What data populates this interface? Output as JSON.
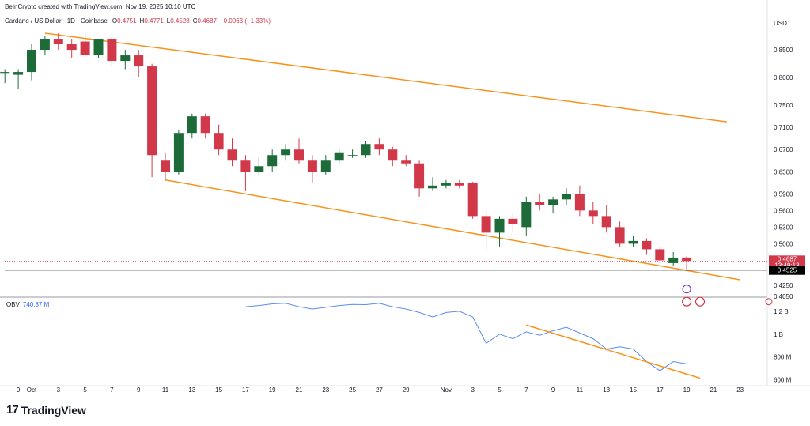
{
  "header": {
    "created_by": "BeInCrypto created with TradingView.com, Nov 19, 2025 10:10 UTC"
  },
  "legend": {
    "symbol": "Cardano / US Dollar · 1D · Coinbase",
    "open_label": "O",
    "open": "0.4751",
    "high_label": "H",
    "high": "0.4771",
    "low_label": "L",
    "low": "0.4528",
    "close_label": "C",
    "close": "0.4687",
    "change": "−0.0063 (−1.33%)"
  },
  "price_axis": {
    "currency": "USD",
    "ticks": [
      {
        "label": "0.8500",
        "v": 0.85
      },
      {
        "label": "0.8000",
        "v": 0.8
      },
      {
        "label": "0.7500",
        "v": 0.75
      },
      {
        "label": "0.7100",
        "v": 0.71
      },
      {
        "label": "0.6700",
        "v": 0.67
      },
      {
        "label": "0.6300",
        "v": 0.63
      },
      {
        "label": "0.5900",
        "v": 0.59
      },
      {
        "label": "0.5600",
        "v": 0.56
      },
      {
        "label": "0.5300",
        "v": 0.53
      },
      {
        "label": "0.5000",
        "v": 0.5
      },
      {
        "label": "0.4250",
        "v": 0.425
      },
      {
        "label": "0.4050",
        "v": 0.405
      }
    ],
    "current_price_tag": "0.4687",
    "countdown_tag": "13:49:13",
    "support_tag": "0.4525"
  },
  "obv": {
    "label": "OBV",
    "value": "740.87 M",
    "ticks": [
      {
        "label": "1.2 B",
        "v": 1200
      },
      {
        "label": "1 B",
        "v": 1000
      },
      {
        "label": "800 M",
        "v": 800
      },
      {
        "label": "600 M",
        "v": 600
      }
    ]
  },
  "time_axis": {
    "ticks": [
      {
        "label": "9",
        "d": -1
      },
      {
        "label": "Oct",
        "d": 0
      },
      {
        "label": "3",
        "d": 2
      },
      {
        "label": "5",
        "d": 4
      },
      {
        "label": "7",
        "d": 6
      },
      {
        "label": "9",
        "d": 8
      },
      {
        "label": "11",
        "d": 10
      },
      {
        "label": "13",
        "d": 12
      },
      {
        "label": "15",
        "d": 14
      },
      {
        "label": "17",
        "d": 16
      },
      {
        "label": "19",
        "d": 18
      },
      {
        "label": "21",
        "d": 20
      },
      {
        "label": "23",
        "d": 22
      },
      {
        "label": "25",
        "d": 24
      },
      {
        "label": "27",
        "d": 26
      },
      {
        "label": "29",
        "d": 28
      },
      {
        "label": "Nov",
        "d": 31
      },
      {
        "label": "3",
        "d": 33
      },
      {
        "label": "5",
        "d": 35
      },
      {
        "label": "7",
        "d": 37
      },
      {
        "label": "9",
        "d": 39
      },
      {
        "label": "11",
        "d": 41
      },
      {
        "label": "13",
        "d": 43
      },
      {
        "label": "15",
        "d": 45
      },
      {
        "label": "17",
        "d": 47
      },
      {
        "label": "19",
        "d": 49
      },
      {
        "label": "21",
        "d": 51
      },
      {
        "label": "23",
        "d": 53
      },
      {
        "label": "25",
        "d": 55
      }
    ]
  },
  "brand": {
    "logo_text": "TradingView",
    "logo_icon": "tradingview-logo-icon"
  },
  "colors": {
    "up": "#1e6b3a",
    "down": "#d1394a",
    "trendline": "#f7931a",
    "obv_line": "#5b8def",
    "support_line": "#000000",
    "current_price": "#d1394a"
  },
  "chart_data": {
    "type": "candlestick",
    "title": "Cardano / US Dollar · 1D · Coinbase",
    "xlabel": "",
    "ylabel": "USD",
    "ylim": [
      0.405,
      0.89
    ],
    "candles": [
      {
        "d": -2,
        "o": 0.81,
        "h": 0.815,
        "l": 0.79,
        "c": 0.81
      },
      {
        "d": -1,
        "o": 0.805,
        "h": 0.815,
        "l": 0.78,
        "c": 0.81
      },
      {
        "d": 0,
        "o": 0.81,
        "h": 0.86,
        "l": 0.795,
        "c": 0.85
      },
      {
        "d": 1,
        "o": 0.85,
        "h": 0.875,
        "l": 0.84,
        "c": 0.87
      },
      {
        "d": 2,
        "o": 0.87,
        "h": 0.88,
        "l": 0.85,
        "c": 0.86
      },
      {
        "d": 3,
        "o": 0.86,
        "h": 0.87,
        "l": 0.835,
        "c": 0.85
      },
      {
        "d": 4,
        "o": 0.865,
        "h": 0.88,
        "l": 0.835,
        "c": 0.84
      },
      {
        "d": 5,
        "o": 0.84,
        "h": 0.87,
        "l": 0.835,
        "c": 0.87
      },
      {
        "d": 6,
        "o": 0.87,
        "h": 0.875,
        "l": 0.82,
        "c": 0.83
      },
      {
        "d": 7,
        "o": 0.83,
        "h": 0.85,
        "l": 0.815,
        "c": 0.84
      },
      {
        "d": 8,
        "o": 0.84,
        "h": 0.85,
        "l": 0.8,
        "c": 0.82
      },
      {
        "d": 9,
        "o": 0.82,
        "h": 0.825,
        "l": 0.62,
        "c": 0.66
      },
      {
        "d": 10,
        "o": 0.65,
        "h": 0.665,
        "l": 0.615,
        "c": 0.63
      },
      {
        "d": 11,
        "o": 0.63,
        "h": 0.705,
        "l": 0.625,
        "c": 0.7
      },
      {
        "d": 12,
        "o": 0.7,
        "h": 0.735,
        "l": 0.69,
        "c": 0.73
      },
      {
        "d": 13,
        "o": 0.73,
        "h": 0.735,
        "l": 0.69,
        "c": 0.7
      },
      {
        "d": 14,
        "o": 0.7,
        "h": 0.715,
        "l": 0.66,
        "c": 0.67
      },
      {
        "d": 15,
        "o": 0.67,
        "h": 0.69,
        "l": 0.64,
        "c": 0.65
      },
      {
        "d": 16,
        "o": 0.65,
        "h": 0.66,
        "l": 0.595,
        "c": 0.63
      },
      {
        "d": 17,
        "o": 0.63,
        "h": 0.655,
        "l": 0.625,
        "c": 0.64
      },
      {
        "d": 18,
        "o": 0.64,
        "h": 0.67,
        "l": 0.63,
        "c": 0.66
      },
      {
        "d": 19,
        "o": 0.66,
        "h": 0.68,
        "l": 0.65,
        "c": 0.67
      },
      {
        "d": 20,
        "o": 0.67,
        "h": 0.69,
        "l": 0.645,
        "c": 0.65
      },
      {
        "d": 21,
        "o": 0.65,
        "h": 0.66,
        "l": 0.61,
        "c": 0.63
      },
      {
        "d": 22,
        "o": 0.63,
        "h": 0.66,
        "l": 0.625,
        "c": 0.65
      },
      {
        "d": 23,
        "o": 0.65,
        "h": 0.67,
        "l": 0.645,
        "c": 0.665
      },
      {
        "d": 24,
        "o": 0.66,
        "h": 0.67,
        "l": 0.655,
        "c": 0.66
      },
      {
        "d": 25,
        "o": 0.66,
        "h": 0.685,
        "l": 0.655,
        "c": 0.68
      },
      {
        "d": 26,
        "o": 0.68,
        "h": 0.69,
        "l": 0.66,
        "c": 0.67
      },
      {
        "d": 27,
        "o": 0.67,
        "h": 0.675,
        "l": 0.64,
        "c": 0.65
      },
      {
        "d": 28,
        "o": 0.65,
        "h": 0.66,
        "l": 0.64,
        "c": 0.645
      },
      {
        "d": 29,
        "o": 0.645,
        "h": 0.65,
        "l": 0.585,
        "c": 0.6
      },
      {
        "d": 30,
        "o": 0.6,
        "h": 0.62,
        "l": 0.595,
        "c": 0.605
      },
      {
        "d": 31,
        "o": 0.605,
        "h": 0.615,
        "l": 0.6,
        "c": 0.61
      },
      {
        "d": 32,
        "o": 0.61,
        "h": 0.615,
        "l": 0.6,
        "c": 0.605
      },
      {
        "d": 33,
        "o": 0.61,
        "h": 0.612,
        "l": 0.545,
        "c": 0.55
      },
      {
        "d": 34,
        "o": 0.55,
        "h": 0.56,
        "l": 0.49,
        "c": 0.52
      },
      {
        "d": 35,
        "o": 0.52,
        "h": 0.55,
        "l": 0.495,
        "c": 0.545
      },
      {
        "d": 36,
        "o": 0.545,
        "h": 0.555,
        "l": 0.52,
        "c": 0.535
      },
      {
        "d": 37,
        "o": 0.53,
        "h": 0.585,
        "l": 0.515,
        "c": 0.575
      },
      {
        "d": 38,
        "o": 0.575,
        "h": 0.59,
        "l": 0.56,
        "c": 0.57
      },
      {
        "d": 39,
        "o": 0.57,
        "h": 0.585,
        "l": 0.555,
        "c": 0.58
      },
      {
        "d": 40,
        "o": 0.58,
        "h": 0.6,
        "l": 0.57,
        "c": 0.59
      },
      {
        "d": 41,
        "o": 0.59,
        "h": 0.605,
        "l": 0.55,
        "c": 0.56
      },
      {
        "d": 42,
        "o": 0.56,
        "h": 0.575,
        "l": 0.535,
        "c": 0.55
      },
      {
        "d": 43,
        "o": 0.55,
        "h": 0.57,
        "l": 0.52,
        "c": 0.53
      },
      {
        "d": 44,
        "o": 0.53,
        "h": 0.54,
        "l": 0.495,
        "c": 0.5
      },
      {
        "d": 45,
        "o": 0.5,
        "h": 0.515,
        "l": 0.495,
        "c": 0.505
      },
      {
        "d": 46,
        "o": 0.505,
        "h": 0.51,
        "l": 0.48,
        "c": 0.49
      },
      {
        "d": 47,
        "o": 0.49,
        "h": 0.495,
        "l": 0.465,
        "c": 0.47
      },
      {
        "d": 48,
        "o": 0.465,
        "h": 0.485,
        "l": 0.46,
        "c": 0.475
      },
      {
        "d": 49,
        "o": 0.4751,
        "h": 0.4771,
        "l": 0.4528,
        "c": 0.4687
      }
    ],
    "trendlines": [
      {
        "name": "upper",
        "points": [
          {
            "d": 1,
            "v": 0.88
          },
          {
            "d": 52,
            "v": 0.72
          }
        ]
      },
      {
        "name": "lower",
        "points": [
          {
            "d": 10,
            "v": 0.615
          },
          {
            "d": 53,
            "v": 0.435
          }
        ]
      }
    ],
    "support_level": 0.4525,
    "obv_series": [
      {
        "d": 16,
        "v": 1240
      },
      {
        "d": 17,
        "v": 1250
      },
      {
        "d": 18,
        "v": 1265
      },
      {
        "d": 19,
        "v": 1270
      },
      {
        "d": 20,
        "v": 1240
      },
      {
        "d": 21,
        "v": 1220
      },
      {
        "d": 22,
        "v": 1235
      },
      {
        "d": 23,
        "v": 1250
      },
      {
        "d": 24,
        "v": 1260
      },
      {
        "d": 25,
        "v": 1258
      },
      {
        "d": 26,
        "v": 1270
      },
      {
        "d": 27,
        "v": 1240
      },
      {
        "d": 28,
        "v": 1220
      },
      {
        "d": 29,
        "v": 1190
      },
      {
        "d": 30,
        "v": 1150
      },
      {
        "d": 31,
        "v": 1190
      },
      {
        "d": 32,
        "v": 1200
      },
      {
        "d": 33,
        "v": 1150
      },
      {
        "d": 34,
        "v": 920
      },
      {
        "d": 35,
        "v": 1000
      },
      {
        "d": 36,
        "v": 960
      },
      {
        "d": 37,
        "v": 1020
      },
      {
        "d": 38,
        "v": 990
      },
      {
        "d": 39,
        "v": 1030
      },
      {
        "d": 40,
        "v": 1060
      },
      {
        "d": 41,
        "v": 1010
      },
      {
        "d": 42,
        "v": 960
      },
      {
        "d": 43,
        "v": 870
      },
      {
        "d": 44,
        "v": 890
      },
      {
        "d": 45,
        "v": 870
      },
      {
        "d": 46,
        "v": 760
      },
      {
        "d": 47,
        "v": 680
      },
      {
        "d": 48,
        "v": 760
      },
      {
        "d": 49,
        "v": 740
      }
    ],
    "obv_trendline": {
      "points": [
        {
          "d": 37,
          "v": 1080
        },
        {
          "d": 50,
          "v": 615
        }
      ]
    },
    "obv_ylim": [
      570,
      1310
    ]
  }
}
